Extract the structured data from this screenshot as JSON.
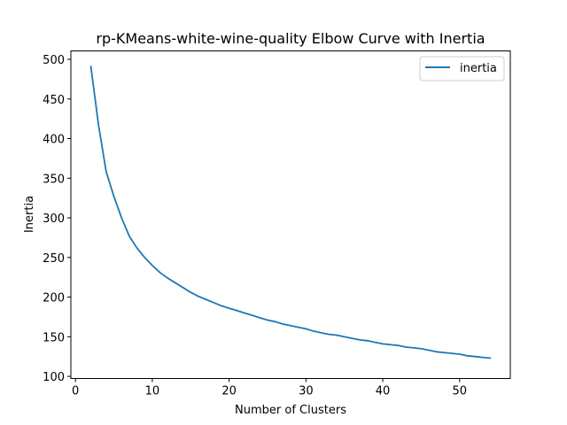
{
  "chart_data": {
    "type": "line",
    "title": "rp-KMeans-white-wine-quality Elbow Curve with Inertia",
    "xlabel": "Number of Clusters",
    "ylabel": "Inertia",
    "xlim": [
      -0.6,
      56.6
    ],
    "ylim": [
      97.3,
      510.6
    ],
    "xticks": [
      0,
      10,
      20,
      30,
      40,
      50
    ],
    "yticks": [
      100,
      150,
      200,
      250,
      300,
      350,
      400,
      450,
      500
    ],
    "grid": false,
    "legend_position": "top-right",
    "series": [
      {
        "name": "inertia",
        "color": "#1f77b4",
        "x": [
          2,
          3,
          4,
          5,
          6,
          7,
          8,
          9,
          10,
          11,
          12,
          13,
          14,
          15,
          16,
          17,
          18,
          19,
          20,
          21,
          22,
          23,
          24,
          25,
          26,
          27,
          28,
          29,
          30,
          31,
          32,
          33,
          34,
          35,
          36,
          37,
          38,
          39,
          40,
          41,
          42,
          43,
          44,
          45,
          46,
          47,
          48,
          49,
          50,
          51,
          52,
          53,
          54
        ],
        "values": [
          491,
          417,
          358,
          327,
          300,
          277,
          262,
          250,
          240,
          231,
          224,
          218,
          212,
          206,
          201,
          197,
          193,
          189,
          186,
          183,
          180,
          177,
          174,
          171,
          169,
          166,
          164,
          162,
          160,
          157,
          155,
          153,
          152,
          150,
          148,
          146,
          145,
          143,
          141,
          140,
          139,
          137,
          136,
          135,
          133,
          131,
          130,
          129,
          128,
          126,
          125,
          124,
          123
        ]
      }
    ]
  }
}
